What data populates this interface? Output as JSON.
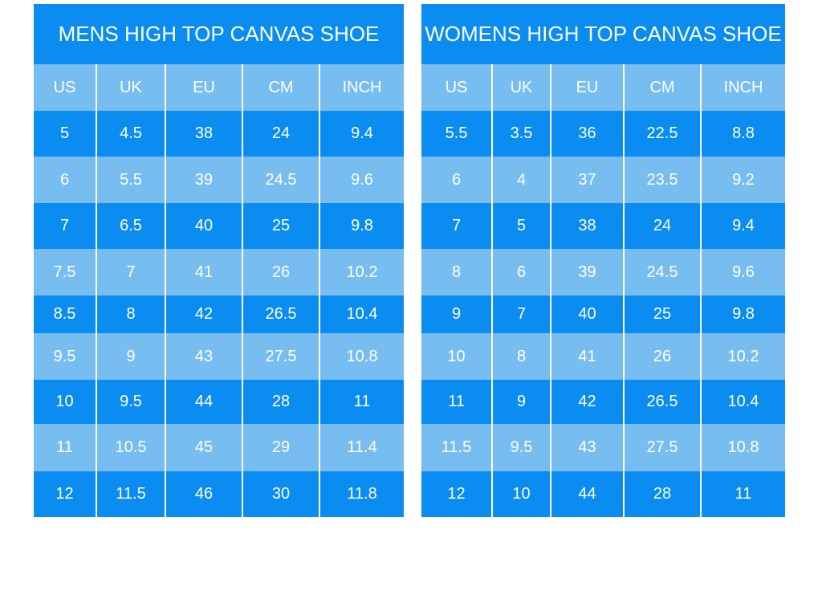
{
  "tables": [
    {
      "title": "MENS HIGH TOP CANVAS SHOE",
      "header": [
        "US",
        "UK",
        "EU",
        "CM",
        "INCH"
      ],
      "rows": [
        [
          "5",
          "4.5",
          "38",
          "24",
          "9.4"
        ],
        [
          "6",
          "5.5",
          "39",
          "24.5",
          "9.6"
        ],
        [
          "7",
          "6.5",
          "40",
          "25",
          "9.8"
        ],
        [
          "7.5",
          "7",
          "41",
          "26",
          "10.2"
        ],
        [
          "8.5",
          "8",
          "42",
          "26.5",
          "10.4"
        ],
        [
          "9.5",
          "9",
          "43",
          "27.5",
          "10.8"
        ],
        [
          "10",
          "9.5",
          "44",
          "28",
          "11"
        ],
        [
          "11",
          "10.5",
          "45",
          "29",
          "11.4"
        ],
        [
          "12",
          "11.5",
          "46",
          "30",
          "11.8"
        ]
      ]
    },
    {
      "title": "WOMENS HIGH TOP CANVAS SHOE",
      "header": [
        "US",
        "UK",
        "EU",
        "CM",
        "INCH"
      ],
      "rows": [
        [
          "5.5",
          "3.5",
          "36",
          "22.5",
          "8.8"
        ],
        [
          "6",
          "4",
          "37",
          "23.5",
          "9.2"
        ],
        [
          "7",
          "5",
          "38",
          "24",
          "9.4"
        ],
        [
          "8",
          "6",
          "39",
          "24.5",
          "9.6"
        ],
        [
          "9",
          "7",
          "40",
          "25",
          "9.8"
        ],
        [
          "10",
          "8",
          "41",
          "26",
          "10.2"
        ],
        [
          "11",
          "9",
          "42",
          "26.5",
          "10.4"
        ],
        [
          "11.5",
          "9.5",
          "43",
          "27.5",
          "10.8"
        ],
        [
          "12",
          "10",
          "44",
          "28",
          "11"
        ]
      ]
    }
  ]
}
